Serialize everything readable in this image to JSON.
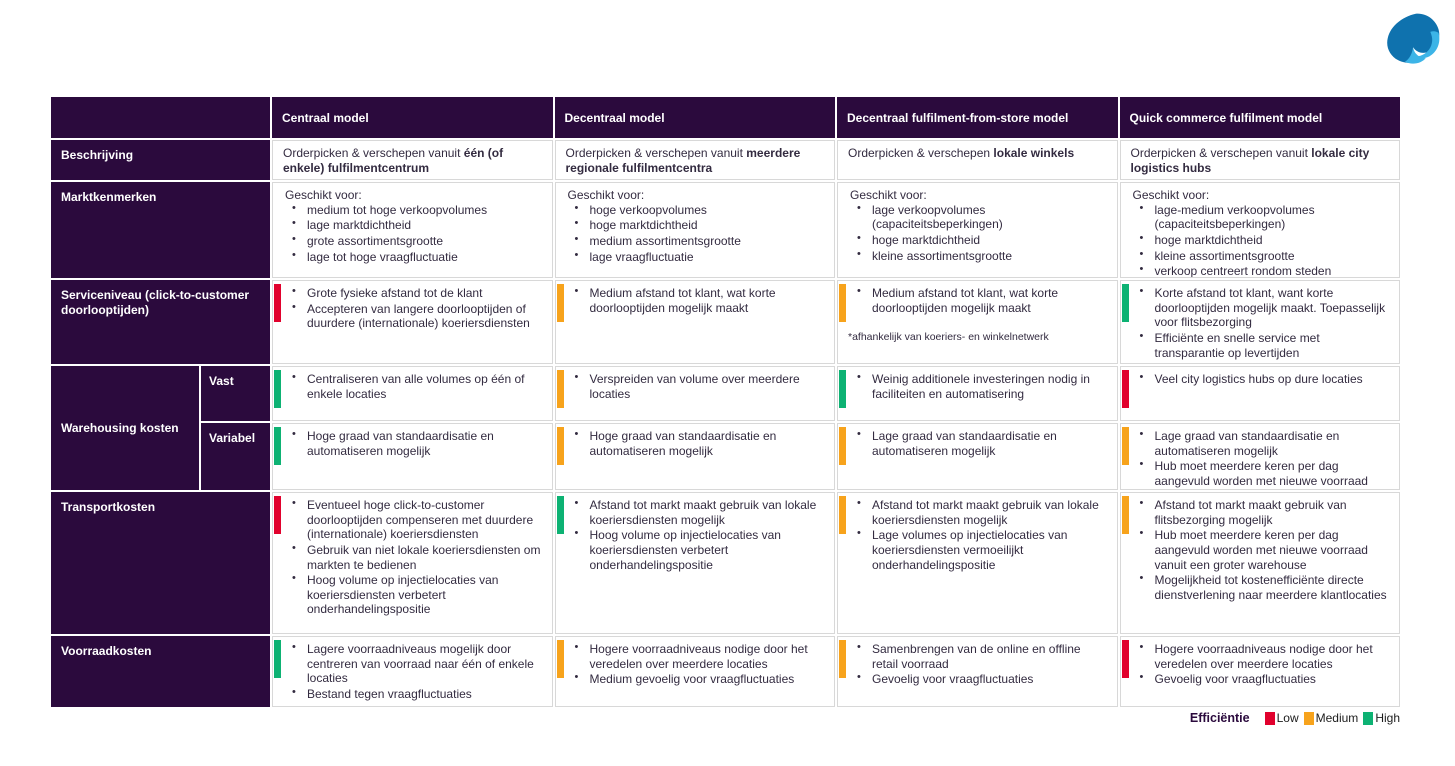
{
  "logo": {
    "name": "capgemini-spade",
    "primary": "#0f72ae",
    "accent": "#3cb4e7"
  },
  "columns": [
    "Centraal model",
    "Decentraal model",
    "Decentraal fulfilment-from-store model",
    "Quick commerce fulfilment model"
  ],
  "rows": {
    "beschrijving": {
      "label": "Beschrijving",
      "cells": [
        {
          "prefix": "Orderpicken & verschepen vanuit ",
          "bold": "één (of enkele) fulfilmentcentrum"
        },
        {
          "prefix": "Orderpicken & verschepen vanuit ",
          "bold": "meerdere regionale fulfilmentcentra"
        },
        {
          "prefix": "Orderpicken & verschepen ",
          "bold": "lokale winkels"
        },
        {
          "prefix": "Orderpicken & verschepen vanuit ",
          "bold": "lokale city logistics hubs"
        }
      ]
    },
    "marktkenmerken": {
      "label": "Marktkenmerken",
      "cells": [
        {
          "intro": "Geschikt voor:",
          "bullets": [
            "medium tot hoge verkoopvolumes",
            "lage marktdichtheid",
            "grote assortimentsgrootte",
            "lage tot hoge vraagfluctuatie"
          ]
        },
        {
          "intro": "Geschikt voor:",
          "bullets": [
            "hoge verkoopvolumes",
            "hoge marktdichtheid",
            "medium assortimentsgrootte",
            "lage vraagfluctuatie"
          ]
        },
        {
          "intro": "Geschikt voor:",
          "bullets": [
            "lage verkoopvolumes (capaciteitsbeperkingen)",
            "hoge marktdichtheid",
            "kleine assortimentsgrootte"
          ]
        },
        {
          "intro": "Geschikt voor:",
          "bullets": [
            "lage-medium verkoopvolumes (capaciteitsbeperkingen)",
            "hoge marktdichtheid",
            "kleine assortimentsgrootte",
            "verkoop centreert rondom steden"
          ]
        }
      ]
    },
    "serviceniveau": {
      "label": "Serviceniveau (click-to-customer doorlooptijden)",
      "cells": [
        {
          "rating": "low",
          "bullets": [
            "Grote fysieke afstand tot de klant",
            "Accepteren van langere doorlooptijden of duurdere (internationale) koeriersdiensten"
          ]
        },
        {
          "rating": "medium",
          "bullets": [
            "Medium afstand tot klant, wat korte doorlooptijden mogelijk maakt"
          ]
        },
        {
          "rating": "medium",
          "bullets": [
            "Medium afstand tot klant, wat korte doorlooptijden mogelijk maakt"
          ],
          "footnote": "*afhankelijk van koeriers- en winkelnetwerk"
        },
        {
          "rating": "high",
          "bullets": [
            "Korte afstand tot klant, want korte doorlooptijden mogelijk maakt. Toepasselijk voor flitsbezorging",
            "Efficiënte en snelle service met transparantie op levertijden"
          ]
        }
      ]
    },
    "warehousing": {
      "label": "Warehousing kosten",
      "sub": [
        {
          "label": "Vast",
          "cells": [
            {
              "rating": "high",
              "bullets": [
                "Centraliseren van alle volumes op één of enkele locaties"
              ]
            },
            {
              "rating": "medium",
              "bullets": [
                "Verspreiden van volume over meerdere locaties"
              ]
            },
            {
              "rating": "high",
              "bullets": [
                "Weinig additionele investeringen nodig in faciliteiten en automatisering"
              ]
            },
            {
              "rating": "low",
              "bullets": [
                "Veel city logistics hubs op dure locaties"
              ]
            }
          ]
        },
        {
          "label": "Variabel",
          "cells": [
            {
              "rating": "high",
              "bullets": [
                "Hoge graad van standaardisatie en automatiseren mogelijk"
              ]
            },
            {
              "rating": "medium",
              "bullets": [
                "Hoge graad van standaardisatie en automatiseren mogelijk"
              ]
            },
            {
              "rating": "medium",
              "bullets": [
                "Lage graad van standaardisatie en automatiseren mogelijk"
              ]
            },
            {
              "rating": "medium",
              "bullets": [
                "Lage graad van standaardisatie en automatiseren mogelijk",
                "Hub moet meerdere keren per dag aangevuld worden met nieuwe voorraad"
              ]
            }
          ]
        }
      ]
    },
    "transport": {
      "label": "Transportkosten",
      "cells": [
        {
          "rating": "low",
          "bullets": [
            "Eventueel hoge click-to-customer doorlooptijden compenseren met duurdere (internationale) koeriersdiensten",
            "Gebruik van niet lokale koeriersdiensten om markten te bedienen",
            "Hoog volume op injectielocaties van koeriersdiensten verbetert onderhandelingspositie"
          ]
        },
        {
          "rating": "high",
          "bullets": [
            "Afstand tot markt maakt gebruik van lokale koeriersdiensten mogelijk",
            "Hoog volume op injectielocaties van koeriersdiensten verbetert onderhandelingspositie"
          ]
        },
        {
          "rating": "medium",
          "bullets": [
            "Afstand tot markt maakt gebruik van lokale koeriersdiensten mogelijk",
            "Lage volumes op injectielocaties van koeriersdiensten vermoeilijkt onderhandelingspositie"
          ]
        },
        {
          "rating": "medium",
          "bullets": [
            "Afstand tot markt maakt gebruik van flitsbezorging mogelijk",
            "Hub moet meerdere keren per dag aangevuld worden met nieuwe voorraad vanuit een groter warehouse",
            "Mogelijkheid tot kostenefficiënte directe dienstverlening naar meerdere klantlocaties"
          ]
        }
      ]
    },
    "voorraad": {
      "label": "Voorraadkosten",
      "cells": [
        {
          "rating": "high",
          "bullets": [
            "Lagere voorraadniveaus mogelijk door centreren van voorraad naar één of enkele locaties",
            "Bestand tegen vraagfluctuaties"
          ]
        },
        {
          "rating": "medium",
          "bullets": [
            "Hogere voorraadniveaus nodige door het veredelen over meerdere locaties",
            "Medium gevoelig voor vraagfluctuaties"
          ]
        },
        {
          "rating": "medium",
          "bullets": [
            "Samenbrengen van de online en offline retail voorraad",
            "Gevoelig voor vraagfluctuaties"
          ]
        },
        {
          "rating": "low",
          "bullets": [
            "Hogere voorraadniveaus nodige door het veredelen over meerdere locaties",
            "Gevoelig voor vraagfluctuaties"
          ]
        }
      ]
    }
  },
  "legend": {
    "title": "Efficiëntie",
    "colors": {
      "low": "#e1012d",
      "medium": "#f7a31c",
      "high": "#0db273"
    },
    "items": [
      {
        "label": "Low",
        "rating": "low"
      },
      {
        "label": "Medium",
        "rating": "medium"
      },
      {
        "label": "High",
        "rating": "high"
      }
    ]
  }
}
